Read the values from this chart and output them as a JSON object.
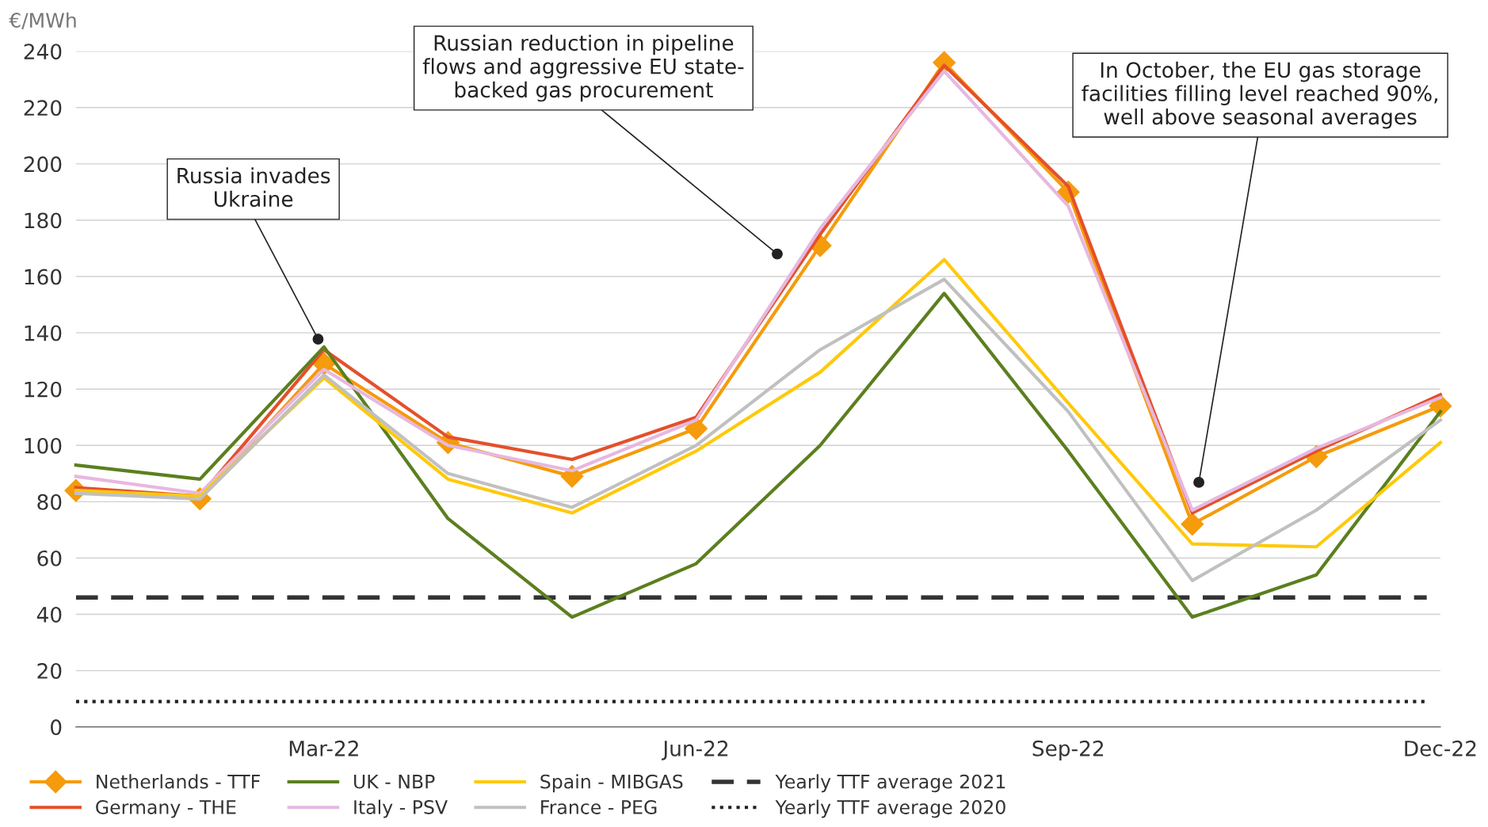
{
  "chart_data": {
    "type": "line",
    "ylabel": "€/MWh",
    "categories": [
      null,
      null,
      "Mar-22",
      null,
      null,
      "Jun-22",
      null,
      null,
      "Sep-22",
      null,
      null,
      "Dec-22"
    ],
    "ylim": [
      0,
      240
    ],
    "yticks": [
      0,
      20,
      40,
      60,
      80,
      100,
      120,
      140,
      160,
      180,
      200,
      220,
      240
    ],
    "grid": "y",
    "legend": "bottom",
    "series": [
      {
        "name": "Netherlands - TTF",
        "color": "#f59b0c",
        "marker": "diamond",
        "values": [
          84,
          81,
          129,
          101,
          89,
          106,
          171,
          236,
          190,
          72,
          96,
          114
        ]
      },
      {
        "name": "Germany - THE",
        "color": "#e4502b",
        "values": [
          85,
          82,
          134,
          103,
          95,
          110,
          175,
          235,
          192,
          76,
          98,
          118
        ]
      },
      {
        "name": "UK - NBP",
        "color": "#5b7f1f",
        "values": [
          93,
          88,
          135,
          74,
          39,
          58,
          100,
          154,
          98,
          39,
          54,
          112
        ]
      },
      {
        "name": "Italy - PSV",
        "color": "#e6b8e0",
        "values": [
          89,
          83,
          127,
          100,
          91,
          109,
          177,
          233,
          185,
          77,
          99,
          117
        ]
      },
      {
        "name": "Spain - MIBGAS",
        "color": "#ffc90a",
        "values": [
          84,
          82,
          124,
          88,
          76,
          98,
          126,
          166,
          115,
          65,
          64,
          101
        ]
      },
      {
        "name": "France - PEG",
        "color": "#c0c0c0",
        "values": [
          83,
          81,
          125,
          90,
          78,
          100,
          134,
          159,
          112,
          52,
          77,
          109
        ]
      }
    ],
    "ref_lines": [
      {
        "axis": "y",
        "value": 46,
        "label": "Yearly TTF average 2021",
        "color": "#333333",
        "line_style": "dashed"
      },
      {
        "axis": "y",
        "value": 9,
        "label": "Yearly TTF average 2020",
        "color": "#222222",
        "line_style": "dotted"
      }
    ],
    "annotations": [
      "Russia invades\nUkraine",
      "Russian reduction in pipeline\nflows and aggressive EU state-\nbacked gas procurement",
      "In October, the EU gas storage\nfacilities filling level reached 90%,\nwell above seasonal averages"
    ]
  }
}
